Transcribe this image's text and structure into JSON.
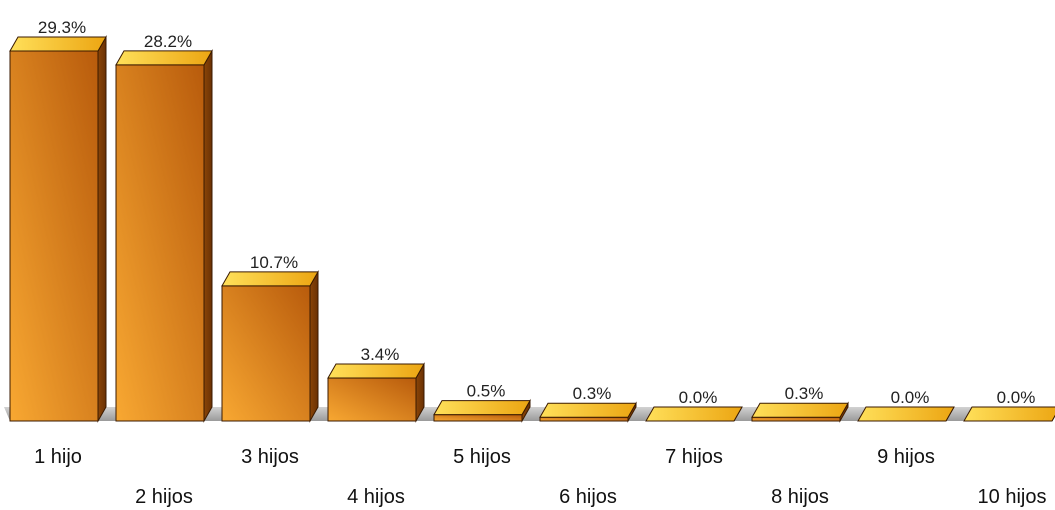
{
  "chart_data": {
    "type": "bar",
    "categories": [
      "1 hijo",
      "2 hijos",
      "3 hijos",
      "4 hijos",
      "5 hijos",
      "6 hijos",
      "7 hijos",
      "8 hijos",
      "9 hijos",
      "10 hijos"
    ],
    "values": [
      29.3,
      28.2,
      10.7,
      3.4,
      0.5,
      0.3,
      0.0,
      0.3,
      0.0,
      0.0
    ],
    "value_labels": [
      "29.3%",
      "28.2%",
      "10.7%",
      "3.4%",
      "0.5%",
      "0.3%",
      "0.0%",
      "0.3%",
      "0.0%",
      "0.0%"
    ],
    "title": "",
    "xlabel": "",
    "ylabel": "",
    "ylim": [
      0,
      30
    ],
    "grid": false,
    "legend": "none",
    "style": "3d",
    "colors": {
      "bar_front_light": "#f8a832",
      "bar_front_dark": "#b85b0c",
      "bar_top_light": "#ffe05a",
      "bar_top_dark": "#eca512",
      "bar_side": "#7a3a06",
      "floor": "#b8b8b8"
    }
  }
}
